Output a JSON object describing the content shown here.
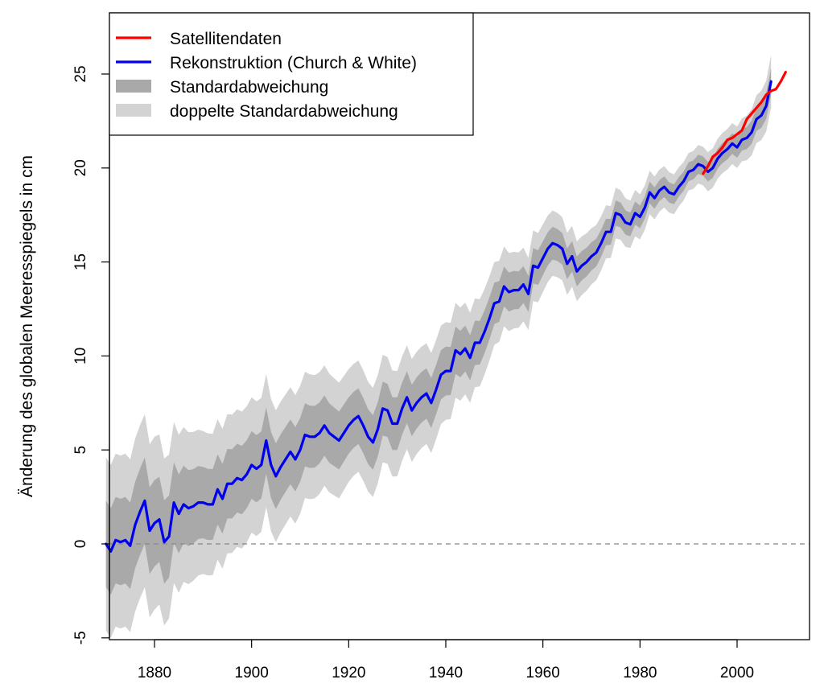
{
  "chart_data": {
    "type": "line",
    "title": "",
    "xlabel": "",
    "ylabel": "Änderung des globalen Meeresspiegels in cm",
    "xlim": [
      1870,
      2015
    ],
    "ylim": [
      -5,
      28
    ],
    "x_ticks": [
      1880,
      1900,
      1920,
      1940,
      1960,
      1980,
      2000
    ],
    "y_ticks": [
      -5,
      0,
      5,
      10,
      15,
      20,
      25
    ],
    "grid": false,
    "reference_line": {
      "y": 0,
      "style": "dashed",
      "color": "#888888"
    },
    "legend": {
      "position": "top-left",
      "entries": [
        {
          "label": "Satellitendaten",
          "color": "#ff0000",
          "kind": "line"
        },
        {
          "label": "Rekonstruktion (Church & White)",
          "color": "#0000ee",
          "kind": "line"
        },
        {
          "label": "Standardabweichung",
          "color": "#a9a9a9",
          "kind": "band"
        },
        {
          "label": "doppelte Standardabweichung",
          "color": "#d3d3d3",
          "kind": "band"
        }
      ]
    },
    "series": [
      {
        "name": "Rekonstruktion (Church & White)",
        "color": "#0000ee",
        "x": [
          1870,
          1871,
          1872,
          1873,
          1874,
          1875,
          1876,
          1877,
          1878,
          1879,
          1880,
          1881,
          1882,
          1883,
          1884,
          1885,
          1886,
          1887,
          1888,
          1889,
          1890,
          1891,
          1892,
          1893,
          1894,
          1895,
          1896,
          1897,
          1898,
          1899,
          1900,
          1901,
          1902,
          1903,
          1904,
          1905,
          1906,
          1907,
          1908,
          1909,
          1910,
          1911,
          1912,
          1913,
          1914,
          1915,
          1916,
          1917,
          1918,
          1919,
          1920,
          1921,
          1922,
          1923,
          1924,
          1925,
          1926,
          1927,
          1928,
          1929,
          1930,
          1931,
          1932,
          1933,
          1934,
          1935,
          1936,
          1937,
          1938,
          1939,
          1940,
          1941,
          1942,
          1943,
          1944,
          1945,
          1946,
          1947,
          1948,
          1949,
          1950,
          1951,
          1952,
          1953,
          1954,
          1955,
          1956,
          1957,
          1958,
          1959,
          1960,
          1961,
          1962,
          1963,
          1964,
          1965,
          1966,
          1967,
          1968,
          1969,
          1970,
          1971,
          1972,
          1973,
          1974,
          1975,
          1976,
          1977,
          1978,
          1979,
          1980,
          1981,
          1982,
          1983,
          1984,
          1985,
          1986,
          1987,
          1988,
          1989,
          1990,
          1991,
          1992,
          1993,
          1994,
          1995,
          1996,
          1997,
          1998,
          1999,
          2000,
          2001,
          2002,
          2003,
          2004,
          2005,
          2006,
          2007
        ],
        "y": [
          0.0,
          -0.4,
          0.2,
          0.1,
          0.2,
          -0.1,
          1.0,
          1.7,
          2.3,
          0.7,
          1.1,
          1.3,
          0.1,
          0.4,
          2.2,
          1.6,
          2.1,
          1.9,
          2.0,
          2.2,
          2.2,
          2.1,
          2.1,
          2.9,
          2.4,
          3.2,
          3.2,
          3.5,
          3.4,
          3.7,
          4.2,
          4.0,
          4.2,
          5.5,
          4.2,
          3.6,
          4.1,
          4.5,
          4.9,
          4.5,
          5.0,
          5.8,
          5.7,
          5.7,
          5.9,
          6.3,
          5.9,
          5.7,
          5.5,
          5.9,
          6.3,
          6.6,
          6.8,
          6.3,
          5.7,
          5.4,
          6.1,
          7.2,
          7.1,
          6.4,
          6.4,
          7.2,
          7.8,
          7.1,
          7.5,
          7.8,
          8.0,
          7.5,
          8.2,
          9.0,
          9.2,
          9.2,
          10.3,
          10.1,
          10.4,
          9.9,
          10.7,
          10.7,
          11.3,
          12.0,
          12.8,
          12.9,
          13.7,
          13.4,
          13.5,
          13.5,
          13.8,
          13.3,
          14.8,
          14.7,
          15.2,
          15.7,
          16.0,
          15.9,
          15.7,
          14.9,
          15.3,
          14.5,
          14.8,
          15.0,
          15.3,
          15.5,
          16.0,
          16.6,
          16.6,
          17.6,
          17.5,
          17.1,
          17.0,
          17.6,
          17.4,
          17.9,
          18.7,
          18.4,
          18.8,
          19.0,
          18.7,
          18.6,
          19.0,
          19.3,
          19.8,
          19.9,
          20.2,
          20.1,
          19.8,
          20.0,
          20.5,
          20.8,
          21.0,
          21.3,
          21.1,
          21.5,
          21.6,
          21.9,
          22.6,
          22.8,
          23.3,
          24.6
        ]
      },
      {
        "name": "Satellitendaten",
        "color": "#ff0000",
        "x": [
          1993,
          1994,
          1995,
          1996,
          1997,
          1998,
          1999,
          2000,
          2001,
          2002,
          2003,
          2004,
          2005,
          2006,
          2007,
          2008,
          2009,
          2010
        ],
        "y": [
          19.7,
          20.1,
          20.6,
          20.8,
          21.1,
          21.5,
          21.6,
          21.8,
          22.0,
          22.6,
          22.9,
          23.2,
          23.5,
          23.9,
          24.1,
          24.2,
          24.6,
          25.1
        ]
      }
    ],
    "bands": [
      {
        "name": "Standardabweichung",
        "sd_multiplier": 1
      },
      {
        "name": "doppelte Standardabweichung",
        "sd_multiplier": 2
      }
    ],
    "uncertainty_sd": {
      "x": [
        1870,
        1880,
        1890,
        1900,
        1910,
        1920,
        1930,
        1940,
        1950,
        1960,
        1970,
        1980,
        1990,
        2000,
        2007
      ],
      "sd": [
        2.3,
        2.3,
        1.9,
        1.8,
        1.7,
        1.5,
        1.4,
        1.3,
        1.1,
        0.9,
        0.75,
        0.6,
        0.5,
        0.55,
        0.7
      ]
    }
  }
}
